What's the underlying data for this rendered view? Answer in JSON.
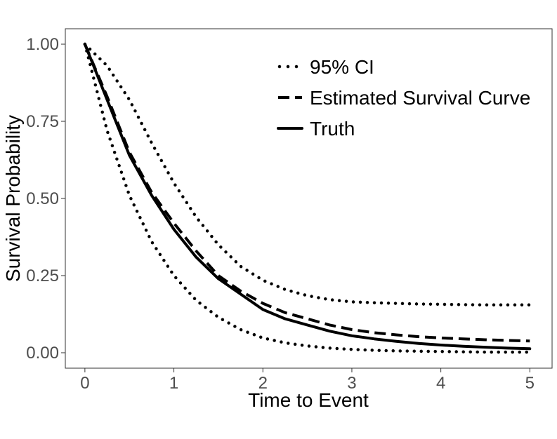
{
  "chart_data": {
    "type": "line",
    "title": "",
    "xlabel": "Time to Event",
    "ylabel": "Survival Probability",
    "xlim": [
      -0.22,
      5.25
    ],
    "ylim": [
      -0.05,
      1.05
    ],
    "x_ticks": [
      0,
      1,
      2,
      3,
      4,
      5
    ],
    "y_ticks": [
      0.0,
      0.25,
      0.5,
      0.75,
      1.0
    ],
    "x_tick_labels": [
      "0",
      "1",
      "2",
      "3",
      "4",
      "5"
    ],
    "y_tick_labels": [
      "0.00",
      "0.25",
      "0.50",
      "0.75",
      "1.00"
    ],
    "grid": false,
    "legend_position": "top-right",
    "x": [
      0,
      0.25,
      0.5,
      0.75,
      1,
      1.25,
      1.5,
      1.75,
      2,
      2.25,
      2.5,
      2.75,
      3,
      3.25,
      3.5,
      3.75,
      4,
      4.25,
      4.5,
      4.75,
      5
    ],
    "series": [
      {
        "name": "95% CI",
        "style": "dotted",
        "values": [
          1.0,
          0.93,
          0.82,
          0.68,
          0.55,
          0.44,
          0.35,
          0.28,
          0.235,
          0.205,
          0.185,
          0.172,
          0.165,
          0.162,
          0.16,
          0.158,
          0.157,
          0.156,
          0.155,
          0.155,
          0.155
        ]
      },
      {
        "name": "Estimated Survival Curve",
        "style": "dashed",
        "values": [
          1.0,
          0.83,
          0.65,
          0.52,
          0.42,
          0.33,
          0.25,
          0.2,
          0.16,
          0.13,
          0.11,
          0.09,
          0.075,
          0.065,
          0.058,
          0.052,
          0.048,
          0.045,
          0.042,
          0.04,
          0.038
        ]
      },
      {
        "name": "Truth",
        "style": "solid",
        "values": [
          1.0,
          0.82,
          0.64,
          0.51,
          0.4,
          0.31,
          0.24,
          0.19,
          0.14,
          0.11,
          0.09,
          0.07,
          0.055,
          0.045,
          0.037,
          0.03,
          0.025,
          0.021,
          0.018,
          0.015,
          0.013
        ]
      },
      {
        "name": "",
        "style": "dotted",
        "values": [
          1.0,
          0.72,
          0.51,
          0.36,
          0.25,
          0.17,
          0.115,
          0.075,
          0.048,
          0.032,
          0.022,
          0.015,
          0.011,
          0.008,
          0.006,
          0.005,
          0.004,
          0.003,
          0.002,
          0.002,
          0.002
        ]
      }
    ]
  }
}
